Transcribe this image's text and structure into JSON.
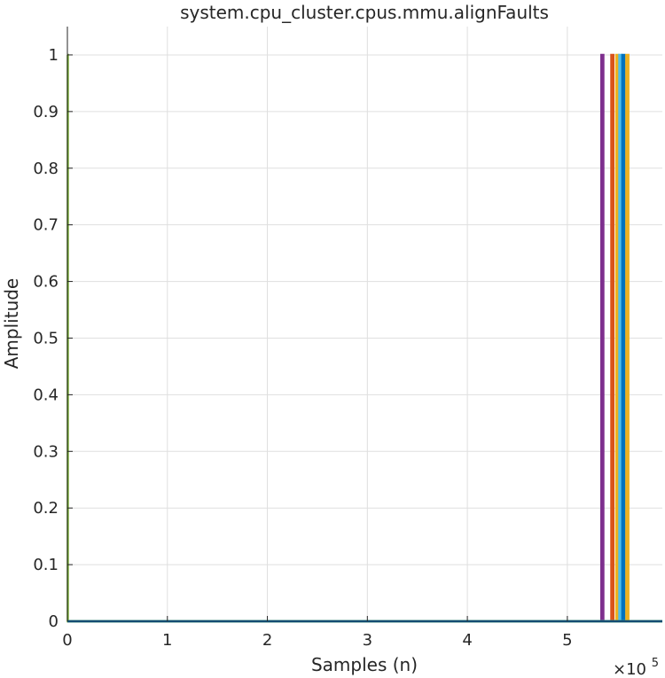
{
  "chart_data": {
    "type": "line",
    "title": "system.cpu_cluster.cpus.mmu.alignFaults",
    "xlabel": "Samples (n)",
    "ylabel": "Amplitude",
    "x_exponent_base": "×10",
    "x_exponent_power": "5",
    "xlim": [
      0,
      5.95
    ],
    "ylim": [
      0,
      1.05
    ],
    "x_ticks": [
      0,
      1,
      2,
      3,
      4,
      5
    ],
    "x_tick_labels": [
      "0",
      "1",
      "2",
      "3",
      "4",
      "5"
    ],
    "y_ticks": [
      0,
      0.1,
      0.2,
      0.3,
      0.4,
      0.5,
      0.6,
      0.7,
      0.8,
      0.9,
      1
    ],
    "y_tick_labels": [
      "0",
      "0.1",
      "0.2",
      "0.3",
      "0.4",
      "0.5",
      "0.6",
      "0.7",
      "0.8",
      "0.9",
      "1"
    ],
    "grid": true,
    "series": [
      {
        "color": "#7e2f8e",
        "x": [
          0,
          5.34,
          5.34,
          5.36,
          5.36,
          5.95
        ],
        "y": [
          0,
          0,
          1,
          1,
          0,
          0
        ]
      },
      {
        "color": "#d95319",
        "x": [
          0,
          5.44,
          5.44,
          5.46,
          5.46,
          5.95
        ],
        "y": [
          0,
          0,
          1,
          1,
          0,
          0
        ]
      },
      {
        "color": "#edb120",
        "x": [
          0,
          5.49,
          5.49,
          5.51,
          5.51,
          5.95
        ],
        "y": [
          0,
          0,
          1,
          1,
          0,
          0
        ]
      },
      {
        "color": "#4dbeee",
        "x": [
          0,
          5.52,
          5.52,
          5.54,
          5.54,
          5.95
        ],
        "y": [
          0,
          0,
          1,
          1,
          0,
          0
        ]
      },
      {
        "color": "#0072bd",
        "x": [
          0,
          5.55,
          5.55,
          5.57,
          5.57,
          5.95
        ],
        "y": [
          0,
          0,
          1,
          1,
          0,
          0
        ]
      },
      {
        "color": "#edb120",
        "x": [
          0,
          5.59,
          5.59,
          5.61,
          5.61,
          5.95
        ],
        "y": [
          0,
          0,
          1,
          1,
          0,
          0
        ]
      },
      {
        "color": "#77ac30",
        "x": [
          0,
          0,
          0.004,
          0.004,
          5.95
        ],
        "y": [
          1,
          1,
          1,
          0,
          0
        ]
      },
      {
        "color": "#0072bd",
        "x": [
          0,
          5.95
        ],
        "y": [
          0,
          0
        ]
      }
    ]
  }
}
